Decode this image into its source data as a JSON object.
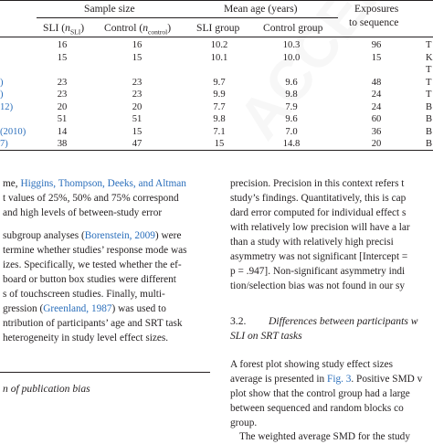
{
  "table": {
    "group_headers": {
      "sample_size": "Sample size",
      "mean_age": "Mean age (years)",
      "exposures_line1": "Exposures",
      "exposures_line2": "to sequence"
    },
    "col_headers": {
      "sli_prefix": "SLI (",
      "sli_n": "n",
      "sli_sub": "SLI",
      "sli_suffix": ")",
      "control_prefix": "Control (",
      "control_n": "n",
      "control_sub": "control",
      "control_suffix": ")",
      "sli_group": "SLI group",
      "control_group": "Control group"
    },
    "rows": [
      {
        "study": "",
        "sli_n": "16",
        "control_n": "16",
        "sli_age": "10.2",
        "control_age": "10.3",
        "exposures": "96",
        "extra": "T"
      },
      {
        "study": "",
        "sli_n": "15",
        "control_n": "15",
        "sli_age": "10.1",
        "control_age": "10.0",
        "exposures": "15",
        "extra": "K"
      },
      {
        "study": "",
        "sli_n": "",
        "control_n": "",
        "sli_age": "",
        "control_age": "",
        "exposures": "",
        "extra": "T"
      },
      {
        "study": ")",
        "sli_n": "23",
        "control_n": "23",
        "sli_age": "9.7",
        "control_age": "9.6",
        "exposures": "48",
        "extra": "T"
      },
      {
        "study": ")",
        "sli_n": "23",
        "control_n": "23",
        "sli_age": "9.9",
        "control_age": "9.8",
        "exposures": "24",
        "extra": "T"
      },
      {
        "study": "12)",
        "sli_n": "20",
        "control_n": "20",
        "sli_age": "7.7",
        "control_age": "7.9",
        "exposures": "24",
        "extra": "B"
      },
      {
        "study": "",
        "sli_n": "51",
        "control_n": "51",
        "sli_age": "9.8",
        "control_age": "9.6",
        "exposures": "60",
        "extra": "B"
      },
      {
        "study": "(2010)",
        "sli_n": "14",
        "control_n": "15",
        "sli_age": "7.1",
        "control_age": "7.0",
        "exposures": "36",
        "extra": "B"
      },
      {
        "study": "7)",
        "sli_n": "38",
        "control_n": "47",
        "sli_age": "15",
        "control_age": "14.8",
        "exposures": "20",
        "extra": "B"
      }
    ]
  },
  "left_col": {
    "p1_l1_pre": "me,",
    "p1_l1_link": "Higgins, Thompson, Deeks, and Altman",
    "p1_l2": "t values of 25%, 50% and 75% correspond",
    "p1_l3": "and high levels of between-study error",
    "p2_l1_pre": "subgroup analyses (",
    "p2_l1_link": "Borenstein, 2009",
    "p2_l1_post": ") were",
    "p2_l2": "termine whether studies’ response mode was",
    "p2_l3": "izes. Specifically, we tested whether the ef-",
    "p2_l4": "board or button box studies were different",
    "p2_l5": "s of touchscreen studies. Finally, multi-",
    "p2_l6_pre": "gression (",
    "p2_l6_link": "Greenland, 1987",
    "p2_l6_post": ") was used to",
    "p2_l7": "ntribution of participants’ age and SRT task",
    "p2_l8": "heterogeneity in study level effect sizes.",
    "section_heading": "n of publication bias"
  },
  "right_col": {
    "l1": "precision. Precision in this context refers t",
    "l2": "study’s findings. Quantitatively, this is cap",
    "l3": "dard error computed for individual effect s",
    "l4": "with relatively low precision will have a lar",
    "l5": "than a study with relatively high precisi",
    "l6": "asymmetry was not significant [Intercept =",
    "l7": "p = .947]. Non-significant asymmetry indi",
    "l8": "tion/selection bias was not found in our sy",
    "sec_num": "3.2.",
    "sec_title_l1": "Differences between participants w",
    "sec_title_l2": "SLI on SRT tasks",
    "l9": "A forest plot showing study effect sizes",
    "l10_pre": "average is presented in ",
    "l10_link": "Fig. 3",
    "l10_post": ". Positive SMD v",
    "l11": "plot show that the control group had a large",
    "l12": "between sequenced and random blocks co",
    "l13": "group.",
    "l14": "The weighted average SMD for the study"
  },
  "colors": {
    "text": "#231f20",
    "link": "#2a6ebb"
  }
}
